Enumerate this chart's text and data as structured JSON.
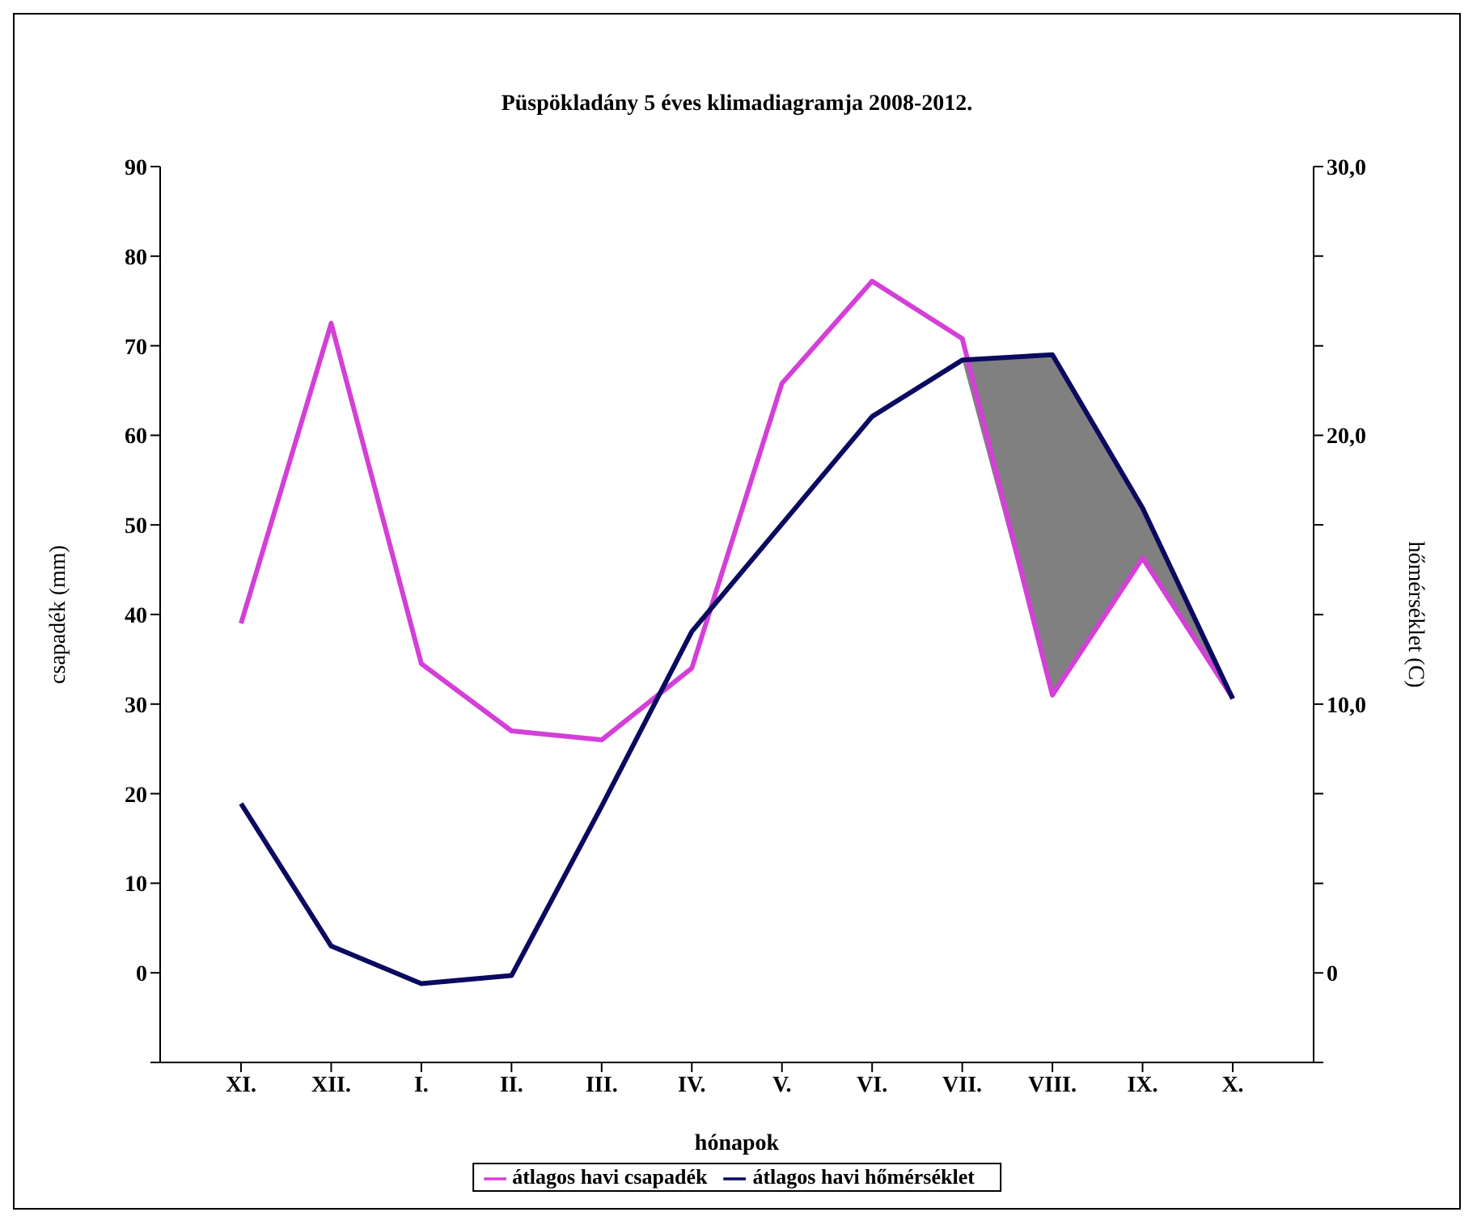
{
  "chart_data": {
    "type": "line",
    "title": "Püspökladány 5 éves klimadiagramja 2008-2012.",
    "xlabel": "hónapok",
    "ylabel": "csapadék (mm)",
    "y2label": "hőmérséklet (C)",
    "categories": [
      "XI.",
      "XII.",
      "I.",
      "II.",
      "III.",
      "IV.",
      "V.",
      "VI.",
      "VII.",
      "VIII.",
      "IX.",
      "X."
    ],
    "series": [
      {
        "name": "átlagos havi csapadék",
        "color": "#d43fd8",
        "values": [
          39,
          72.5,
          34.5,
          27,
          26,
          34,
          65.8,
          77.2,
          70.8,
          31,
          46.3,
          30.7
        ]
      },
      {
        "name": "átlagos havi hőmérséklet",
        "color": "#0a0a60",
        "axis": "y2",
        "values": [
          6.3,
          1.0,
          -0.4,
          -0.1,
          6.2,
          12.7,
          16.7,
          20.7,
          22.8,
          23.0,
          17.3,
          10.2
        ],
        "lower": [
          null,
          null,
          null,
          null,
          null,
          null,
          null,
          null,
          22.8,
          10.3,
          15.4,
          10.2
        ],
        "upper": [
          null,
          null,
          null,
          null,
          null,
          null,
          null,
          null,
          22.8,
          23.0,
          17.3,
          10.2
        ]
      }
    ],
    "ylim": [
      -10,
      90
    ],
    "yticks": [
      {
        "value": -10,
        "label": null
      },
      0,
      10,
      20,
      30,
      40,
      50,
      60,
      70,
      80,
      90
    ],
    "y2lim": [
      -3.33,
      30
    ],
    "y2ticks": [
      {
        "value": -3.33,
        "label": null
      },
      0,
      {
        "value": 3.33,
        "label": null
      },
      {
        "value": 6.67,
        "label": null
      },
      {
        "value": 10,
        "label": "10,0"
      },
      {
        "value": 13.33,
        "label": null
      },
      {
        "value": 16.67,
        "label": null
      },
      {
        "value": 20,
        "label": "20,0"
      },
      {
        "value": 23.33,
        "label": null
      },
      {
        "value": 26.67,
        "label": null
      },
      {
        "value": 30,
        "label": "30,0"
      }
    ],
    "grid": false,
    "legend": "bottom",
    "line_style": "solid",
    "marker": "none"
  }
}
